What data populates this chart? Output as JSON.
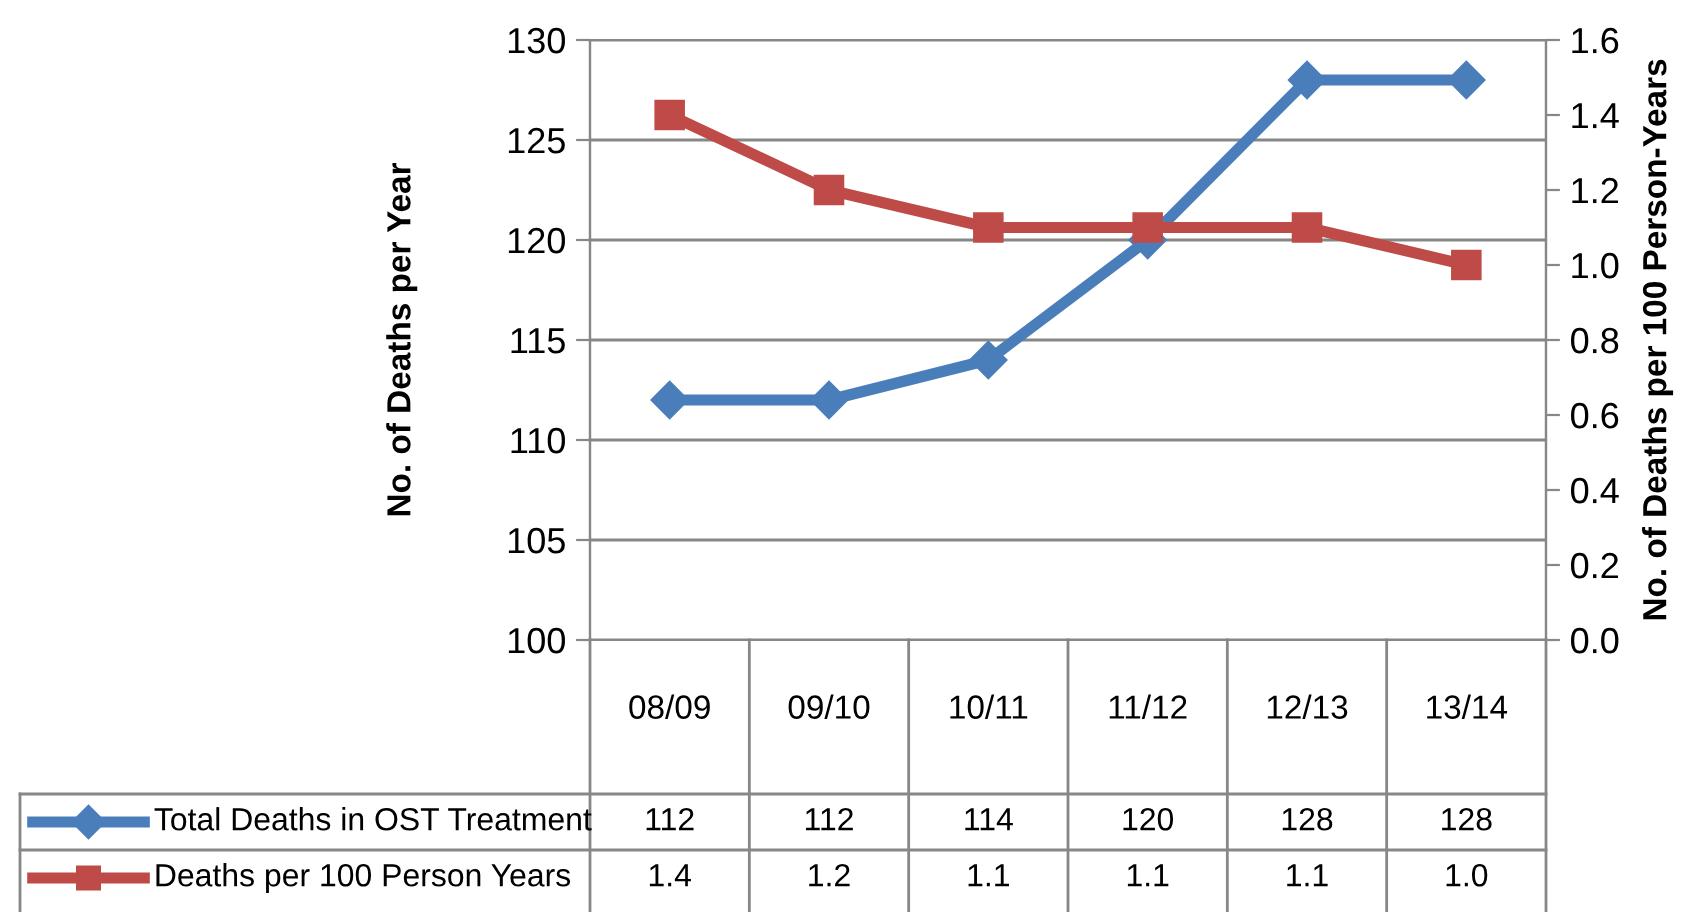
{
  "chart_data": {
    "type": "line",
    "ylabel": "No. of Deaths per Year",
    "y2label": "No. of Deaths per 100 Person-Years",
    "categories": [
      "08/09",
      "09/10",
      "10/11",
      "11/12",
      "12/13",
      "13/14"
    ],
    "series": [
      {
        "name": "Total Deaths in OST Treatment",
        "color": "#4a7ebb",
        "marker": "diamond",
        "values": [
          112,
          112,
          114,
          120,
          128,
          128
        ],
        "value_labels": [
          "112",
          "112",
          "114",
          "120",
          "128",
          "128"
        ]
      },
      {
        "name": "Deaths per 100 Person Years",
        "color": "#be4b48",
        "marker": "square",
        "axis": "y2",
        "values": [
          1.4,
          1.2,
          1.1,
          1.1,
          1.1,
          1.0
        ],
        "value_labels": [
          "1.4",
          "1.2",
          "1.1",
          "1.1",
          "1.1",
          "1.0"
        ]
      }
    ],
    "ylim": [
      100,
      130
    ],
    "yticks": [
      100,
      105,
      110,
      115,
      120,
      125,
      130
    ],
    "y2lim": [
      0,
      1.6
    ],
    "y2ticks": [
      {
        "value": 0,
        "label": "0.0"
      },
      {
        "value": 0.2,
        "label": "0.2"
      },
      {
        "value": 0.4,
        "label": "0.4"
      },
      {
        "value": 0.6,
        "label": "0.6"
      },
      {
        "value": 0.8,
        "label": "0.8"
      },
      {
        "value": 1.0,
        "label": "1.0"
      },
      {
        "value": 1.2,
        "label": "1.2"
      },
      {
        "value": 1.4,
        "label": "1.4"
      },
      {
        "value": 1.6,
        "label": "1.6"
      }
    ],
    "grid": "y",
    "line_style": "solid",
    "legend": "bottom"
  }
}
